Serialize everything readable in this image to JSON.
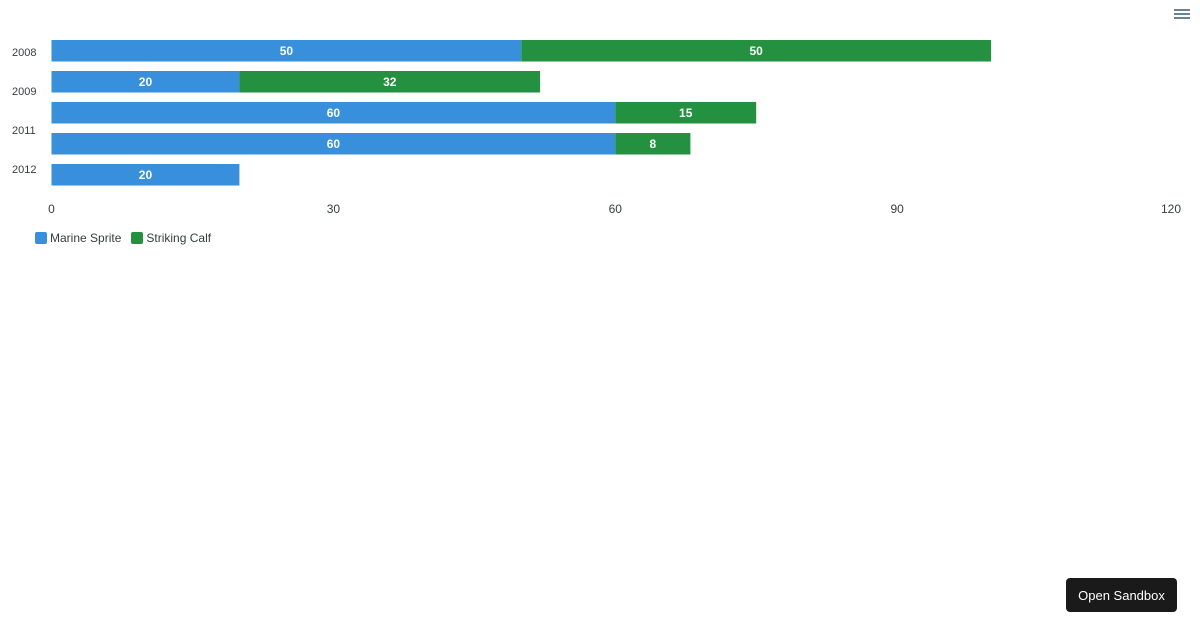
{
  "toolbar": {
    "menu_icon": "hamburger-menu-icon"
  },
  "chart_data": {
    "type": "bar",
    "orientation": "horizontal",
    "stacked": true,
    "categories": [
      "2008",
      "2009",
      "2011",
      "2011",
      "2012"
    ],
    "series": [
      {
        "name": "Marine Sprite",
        "color": "#388fdb",
        "values": [
          50,
          20,
          60,
          60,
          20
        ]
      },
      {
        "name": "Striking Calf",
        "color": "#23913f",
        "values": [
          50,
          32,
          15,
          8,
          0
        ]
      }
    ],
    "xlim": [
      0,
      120
    ],
    "x_ticks": [
      "0",
      "30",
      "60",
      "90",
      "120"
    ],
    "data_labels": true,
    "grid": false,
    "legend_position": "bottom-left"
  },
  "sandbox": {
    "label": "Open Sandbox"
  }
}
